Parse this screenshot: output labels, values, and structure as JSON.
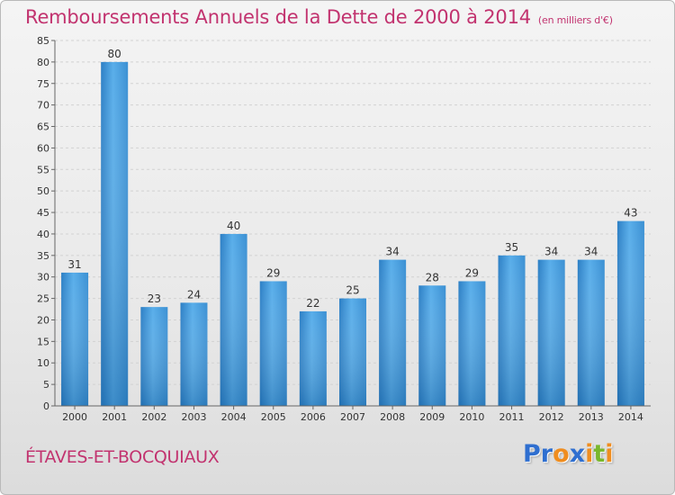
{
  "chart_data": {
    "type": "bar",
    "title": "Remboursements Annuels de la Dette de 2000 à 2014",
    "unit": "(en milliers d'€)",
    "categories": [
      "2000",
      "2001",
      "2002",
      "2003",
      "2004",
      "2005",
      "2006",
      "2007",
      "2008",
      "2009",
      "2010",
      "2011",
      "2012",
      "2013",
      "2014"
    ],
    "values": [
      31,
      80,
      23,
      24,
      40,
      29,
      22,
      25,
      34,
      28,
      29,
      35,
      34,
      34,
      43
    ],
    "ylim": [
      0,
      85
    ],
    "yticks": [
      0,
      5,
      10,
      15,
      20,
      25,
      30,
      35,
      40,
      45,
      50,
      55,
      60,
      65,
      70,
      75,
      80,
      85
    ],
    "grid": true,
    "bar_color": "#3d95d9"
  },
  "footer": {
    "place": "ÉTAVES-ET-BOCQUIAUX",
    "logo_letters": [
      "P",
      "r",
      "o",
      "x",
      "i",
      "t",
      "i"
    ]
  },
  "colors": {
    "title": "#c2336f",
    "logo": [
      "#2f6fd0",
      "#2f6fd0",
      "#ef8d1f",
      "#2f6fd0",
      "#ef8d1f",
      "#79b72c",
      "#ef8d1f"
    ]
  }
}
